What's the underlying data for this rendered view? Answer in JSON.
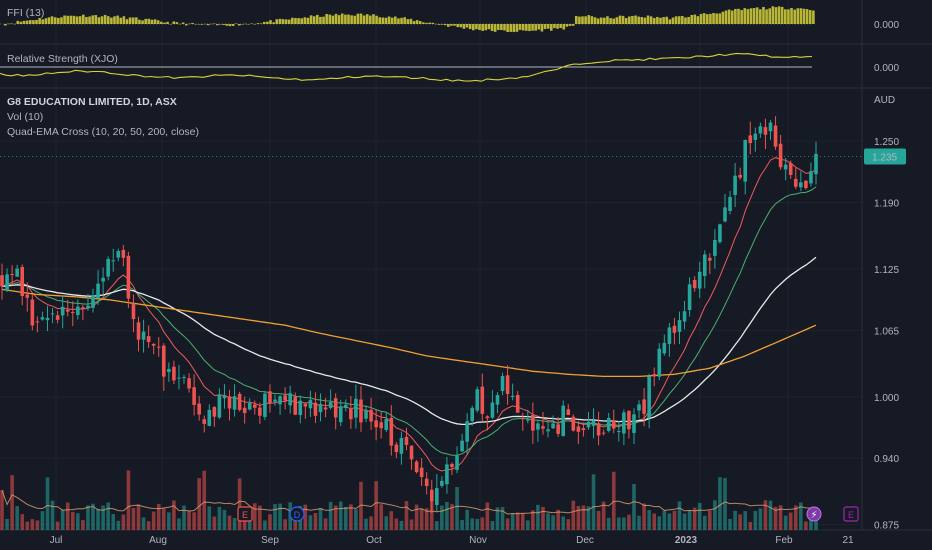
{
  "panes": {
    "ffi": {
      "label": "FFI (13)",
      "value_label": "0.000"
    },
    "rs": {
      "label": "Relative Strength (XJO)",
      "value_label": "0.000"
    },
    "main": {
      "title": "G8 EDUCATION LIMITED, 1D, ASX",
      "vol_label": "Vol (10)",
      "ema_label": "Quad-EMA Cross (10, 20, 50, 200, close)",
      "currency": "AUD"
    }
  },
  "price_axis": {
    "ticks": [
      "1.250",
      "1.190",
      "1.125",
      "1.065",
      "1.000",
      "0.940",
      "0.875"
    ],
    "last_price": "1.235"
  },
  "time_axis": {
    "labels": [
      "Jul",
      "Aug",
      "Sep",
      "Oct",
      "Nov",
      "Dec",
      "2023",
      "Feb",
      "21"
    ]
  },
  "event_markers": {
    "earnings": "E",
    "dividend": "D"
  },
  "colors": {
    "background": "#161a25",
    "up": "#26a69a",
    "down": "#ef5350",
    "ema10": "#f05a5a",
    "ema20": "#4caf6e",
    "ema50": "#e8e8e8",
    "ema200": "#f0a030",
    "indicator": "#d7d339",
    "last_price_badge": "#26a69a"
  },
  "chart_data": {
    "type": "candlestick",
    "title": "G8 EDUCATION LIMITED, 1D, ASX",
    "currency": "AUD",
    "ylim": [
      0.86,
      1.3
    ],
    "x_labels": [
      "Jul",
      "Aug",
      "Sep",
      "Oct",
      "Nov",
      "Dec",
      "2023",
      "Feb"
    ],
    "close_path": [
      1.115,
      1.125,
      1.08,
      1.07,
      1.085,
      1.09,
      1.1,
      1.12,
      1.14,
      1.07,
      1.05,
      1.03,
      1.02,
      0.99,
      0.98,
      1.005,
      0.985,
      0.99,
      1.0,
      0.995,
      0.995,
      0.99,
      0.98,
      0.99,
      0.985,
      0.98,
      0.965,
      0.95,
      0.94,
      0.905,
      0.93,
      0.96,
      1.0,
      0.99,
      1.01,
      0.985,
      0.98,
      0.97,
      0.98,
      0.97,
      0.965,
      0.97,
      0.975,
      0.98,
      1.02,
      1.06,
      1.09,
      1.11,
      1.15,
      1.2,
      1.23,
      1.27,
      1.26,
      1.22,
      1.2,
      1.235
    ],
    "last_price": 1.235,
    "emas": [
      {
        "name": "EMA 10",
        "period": 10
      },
      {
        "name": "EMA 20",
        "period": 20
      },
      {
        "name": "EMA 50",
        "period": 50
      },
      {
        "name": "EMA 200",
        "period": 200,
        "path": [
          1.105,
          1.1,
          1.098,
          1.095,
          1.09,
          1.085,
          1.08,
          1.075,
          1.07,
          1.062,
          1.055,
          1.048,
          1.04,
          1.035,
          1.03,
          1.025,
          1.022,
          1.02,
          1.02,
          1.022,
          1.028,
          1.04,
          1.055,
          1.07
        ]
      }
    ],
    "volume_ma_period": 10
  }
}
